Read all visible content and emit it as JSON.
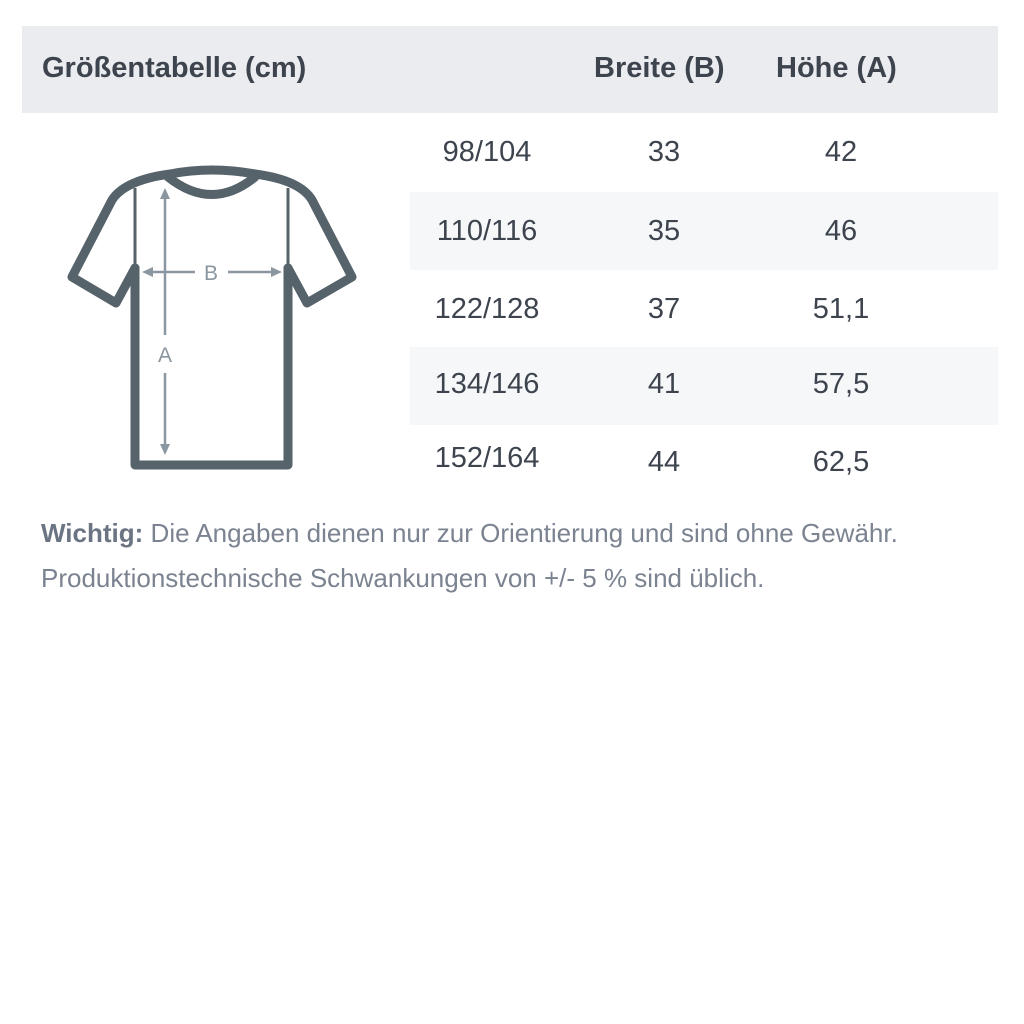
{
  "table": {
    "title": "Größentabelle (cm)",
    "columns": [
      "Breite (B)",
      "Höhe (A)"
    ],
    "rows": [
      {
        "size": "98/104",
        "breite": "33",
        "hoehe": "42"
      },
      {
        "size": "110/116",
        "breite": "35",
        "hoehe": "46"
      },
      {
        "size": "122/128",
        "breite": "37",
        "hoehe": "51,1"
      },
      {
        "size": "134/146",
        "breite": "41",
        "hoehe": "57,5"
      },
      {
        "size": "152/164",
        "breite": "44",
        "hoehe": "62,5"
      }
    ]
  },
  "diagram": {
    "label_b": "B",
    "label_a": "A",
    "outline_color": "#56636b",
    "arrow_color": "#8a96a0"
  },
  "note": {
    "bold": "Wichtig:",
    "line1": " Die Angaben dienen nur zur Orientierung und sind ohne Gewähr.",
    "line2": "Produktionstechnische Schwankungen von +/- 5 % sind üblich."
  }
}
